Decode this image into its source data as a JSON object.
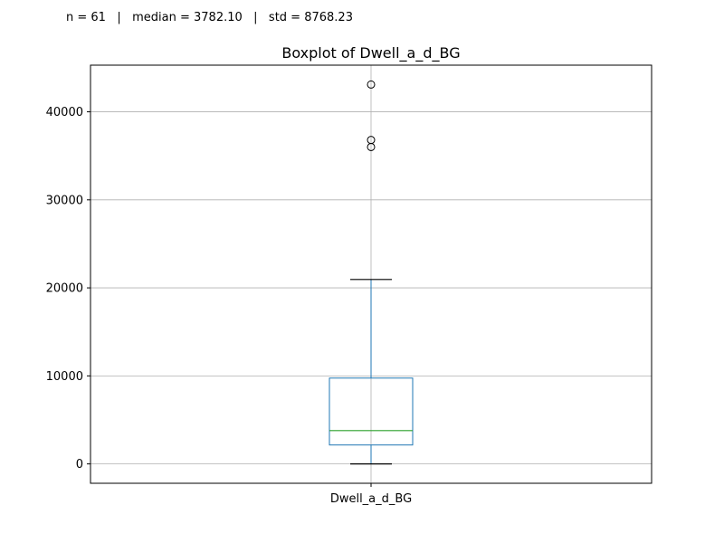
{
  "header": {
    "stats_line": "n = 61   |   median = 3782.10   |   std = 8768.23"
  },
  "chart_data": {
    "type": "boxplot",
    "title": "Boxplot of Dwell_a_d_BG",
    "xlabel": "",
    "ylabel": "",
    "categories": [
      "Dwell_a_d_BG"
    ],
    "ylim": [
      -2200,
      45300
    ],
    "yticks": [
      0,
      10000,
      20000,
      30000,
      40000
    ],
    "ytick_labels": [
      "0",
      "10000",
      "20000",
      "30000",
      "40000"
    ],
    "grid": true,
    "box": {
      "whisker_low": 0,
      "q1": 2150,
      "median": 3782.1,
      "q3": 9750,
      "whisker_high": 20950
    },
    "outliers": [
      36000,
      36800,
      43100
    ],
    "colors": {
      "box": "#1f77b4",
      "median": "#2ca02c",
      "whisker": "#1f77b4",
      "cap": "#000000",
      "outlier": "#000000",
      "grid": "#b0b0b0",
      "axes": "#000000"
    },
    "stats": {
      "n": 61,
      "median": 3782.1,
      "std": 8768.23
    }
  }
}
